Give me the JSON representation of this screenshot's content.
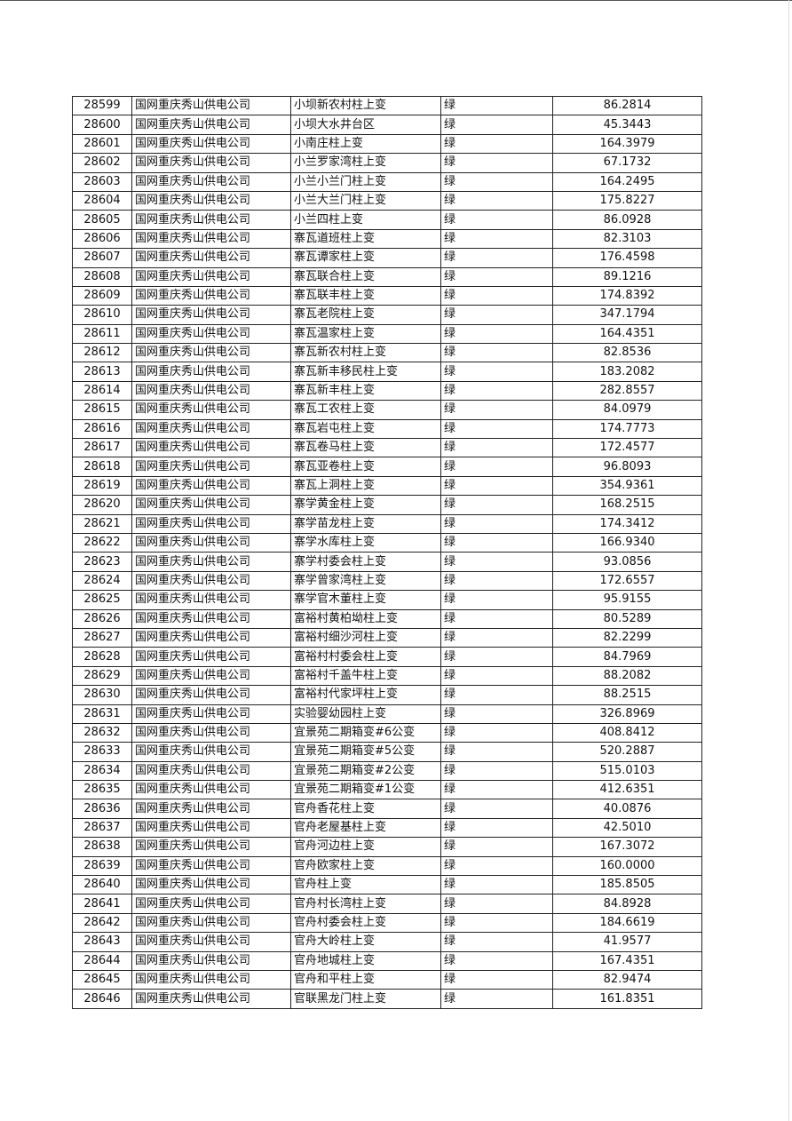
{
  "table": {
    "company": "国网重庆秀山供电公司",
    "status": "绿",
    "rows": [
      [
        "28599",
        "小坝新农村柱上变",
        "86.2814"
      ],
      [
        "28600",
        "小坝大水井台区",
        "45.3443"
      ],
      [
        "28601",
        "小南庄柱上变",
        "164.3979"
      ],
      [
        "28602",
        "小兰罗家湾柱上变",
        "67.1732"
      ],
      [
        "28603",
        "小兰小兰门柱上变",
        "164.2495"
      ],
      [
        "28604",
        "小兰大兰门柱上变",
        "175.8227"
      ],
      [
        "28605",
        "小兰四柱上变",
        "86.0928"
      ],
      [
        "28606",
        "寨瓦道班柱上变",
        "82.3103"
      ],
      [
        "28607",
        "寨瓦谭家柱上变",
        "176.4598"
      ],
      [
        "28608",
        "寨瓦联合柱上变",
        "89.1216"
      ],
      [
        "28609",
        "寨瓦联丰柱上变",
        "174.8392"
      ],
      [
        "28610",
        "寨瓦老院柱上变",
        "347.1794"
      ],
      [
        "28611",
        "寨瓦温家柱上变",
        "164.4351"
      ],
      [
        "28612",
        "寨瓦新农村柱上变",
        "82.8536"
      ],
      [
        "28613",
        "寨瓦新丰移民柱上变",
        "183.2082"
      ],
      [
        "28614",
        "寨瓦新丰柱上变",
        "282.8557"
      ],
      [
        "28615",
        "寨瓦工农柱上变",
        "84.0979"
      ],
      [
        "28616",
        "寨瓦岩屯柱上变",
        "174.7773"
      ],
      [
        "28617",
        "寨瓦卷马柱上变",
        "172.4577"
      ],
      [
        "28618",
        "寨瓦亚卷柱上变",
        "96.8093"
      ],
      [
        "28619",
        "寨瓦上洞柱上变",
        "354.9361"
      ],
      [
        "28620",
        "寨学黄金柱上变",
        "168.2515"
      ],
      [
        "28621",
        "寨学苗龙柱上变",
        "174.3412"
      ],
      [
        "28622",
        "寨学水库柱上变",
        "166.9340"
      ],
      [
        "28623",
        "寨学村委会柱上变",
        "93.0856"
      ],
      [
        "28624",
        "寨学曾家湾柱上变",
        "172.6557"
      ],
      [
        "28625",
        "寨学官木董柱上变",
        "95.9155"
      ],
      [
        "28626",
        "富裕村黄柏坳柱上变",
        "80.5289"
      ],
      [
        "28627",
        "富裕村细沙河柱上变",
        "82.2299"
      ],
      [
        "28628",
        "富裕村村委会柱上变",
        "84.7969"
      ],
      [
        "28629",
        "富裕村千盖牛柱上变",
        "88.2082"
      ],
      [
        "28630",
        "富裕村代家坪柱上变",
        "88.2515"
      ],
      [
        "28631",
        "实验婴幼园柱上变",
        "326.8969"
      ],
      [
        "28632",
        "宜景苑二期箱变#6公变",
        "408.8412"
      ],
      [
        "28633",
        "宜景苑二期箱变#5公变",
        "520.2887"
      ],
      [
        "28634",
        "宜景苑二期箱变#2公变",
        "515.0103"
      ],
      [
        "28635",
        "宜景苑二期箱变#1公变",
        "412.6351"
      ],
      [
        "28636",
        "官舟香花柱上变",
        "40.0876"
      ],
      [
        "28637",
        "官舟老屋基柱上变",
        "42.5010"
      ],
      [
        "28638",
        "官舟河边柱上变",
        "167.3072"
      ],
      [
        "28639",
        "官舟欧家柱上变",
        "160.0000"
      ],
      [
        "28640",
        "官舟柱上变",
        "185.8505"
      ],
      [
        "28641",
        "官舟村长湾柱上变",
        "84.8928"
      ],
      [
        "28642",
        "官舟村委会柱上变",
        "184.6619"
      ],
      [
        "28643",
        "官舟大岭柱上变",
        "41.9577"
      ],
      [
        "28644",
        "官舟地城柱上变",
        "167.4351"
      ],
      [
        "28645",
        "官舟和平柱上变",
        "82.9474"
      ],
      [
        "28646",
        "官联黑龙门柱上变",
        "161.8351"
      ]
    ]
  }
}
